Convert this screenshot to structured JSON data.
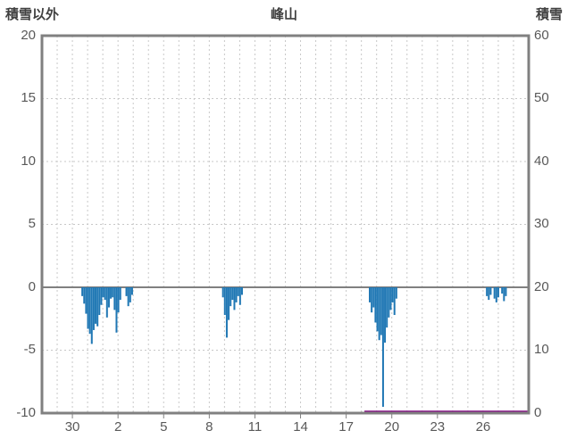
{
  "header": {
    "left_label": "積雪以外",
    "title": "峰山",
    "right_label": "積雪"
  },
  "chart_data": {
    "type": "bar",
    "title": "峰山",
    "left_axis": {
      "label": "積雪以外",
      "min": -10,
      "max": 20,
      "tick_values": [
        20,
        15,
        10,
        5,
        0,
        -5,
        -10
      ],
      "tick_labels": [
        "20",
        "15",
        "10",
        "5",
        "0",
        "-5",
        "-10"
      ],
      "grid_values": [
        15,
        10,
        5,
        -5
      ]
    },
    "right_axis": {
      "label": "積雪",
      "min": 0,
      "max": 60,
      "tick_values": [
        60,
        50,
        40,
        30,
        20,
        10,
        0
      ],
      "tick_labels": [
        "60",
        "50",
        "40",
        "30",
        "20",
        "10",
        "0"
      ]
    },
    "x_axis": {
      "domain": [
        -2,
        30
      ],
      "day_grid_step": 1,
      "tick_positions": [
        0,
        3,
        6,
        9,
        12,
        15,
        18,
        21,
        24,
        27
      ],
      "tick_labels": [
        "30",
        "2",
        "5",
        "8",
        "11",
        "14",
        "17",
        "20",
        "23",
        "26"
      ]
    },
    "grid": true,
    "legend": "none",
    "colors": {
      "bar": "#1f77b4",
      "snow_line": "#800080",
      "grid_line": "#c8c8c8",
      "axis": "#808080",
      "header_text": "#404040",
      "tick_text": "#595959"
    },
    "series": [
      {
        "name": "non-snow-element-bars",
        "type": "bar",
        "axis": "left",
        "color": "#1f77b4",
        "points": [
          [
            0.65,
            -0.7
          ],
          [
            0.775,
            -1.3
          ],
          [
            0.9,
            -2.1
          ],
          [
            1.025,
            -3.3
          ],
          [
            1.15,
            -3.7
          ],
          [
            1.275,
            -4.5
          ],
          [
            1.4,
            -3.4
          ],
          [
            1.525,
            -2.9
          ],
          [
            1.65,
            -3.1
          ],
          [
            1.775,
            -2.2
          ],
          [
            1.9,
            -1.4
          ],
          [
            2.025,
            -0.8
          ],
          [
            2.15,
            -1.0
          ],
          [
            2.275,
            -2.4
          ],
          [
            2.4,
            -1.6
          ],
          [
            2.525,
            -0.9
          ],
          [
            2.65,
            -0.8
          ],
          [
            2.775,
            -1.8
          ],
          [
            2.9,
            -3.6
          ],
          [
            3.025,
            -2.0
          ],
          [
            3.15,
            -1.0
          ],
          [
            3.55,
            -0.7
          ],
          [
            3.675,
            -1.5
          ],
          [
            3.8,
            -1.2
          ],
          [
            3.925,
            -0.6
          ],
          [
            9.9,
            -0.8
          ],
          [
            10.025,
            -2.2
          ],
          [
            10.15,
            -4.0
          ],
          [
            10.275,
            -2.6
          ],
          [
            10.4,
            -1.5
          ],
          [
            10.525,
            -1.0
          ],
          [
            10.65,
            -1.8
          ],
          [
            10.775,
            -1.2
          ],
          [
            10.9,
            -0.7
          ],
          [
            11.025,
            -1.4
          ],
          [
            11.15,
            -0.6
          ],
          [
            19.55,
            -1.2
          ],
          [
            19.675,
            -2.0
          ],
          [
            19.8,
            -1.6
          ],
          [
            19.925,
            -2.8
          ],
          [
            20.05,
            -3.5
          ],
          [
            20.175,
            -4.2
          ],
          [
            20.3,
            -3.8
          ],
          [
            20.425,
            -9.5
          ],
          [
            20.55,
            -4.4
          ],
          [
            20.675,
            -3.2
          ],
          [
            20.8,
            -2.4
          ],
          [
            20.925,
            -1.8
          ],
          [
            21.05,
            -1.2
          ],
          [
            21.175,
            -2.2
          ],
          [
            21.3,
            -0.9
          ],
          [
            27.25,
            -0.7
          ],
          [
            27.375,
            -1.0
          ],
          [
            27.5,
            -0.6
          ],
          [
            27.75,
            -0.9
          ],
          [
            27.875,
            -1.2
          ],
          [
            28.0,
            -0.8
          ],
          [
            28.25,
            -0.5
          ],
          [
            28.375,
            -1.1
          ],
          [
            28.5,
            -0.7
          ]
        ]
      },
      {
        "name": "snow-depth-line",
        "type": "line",
        "axis": "right",
        "color": "#800080",
        "points": [
          [
            19.2,
            0
          ],
          [
            30,
            0
          ]
        ]
      }
    ]
  }
}
